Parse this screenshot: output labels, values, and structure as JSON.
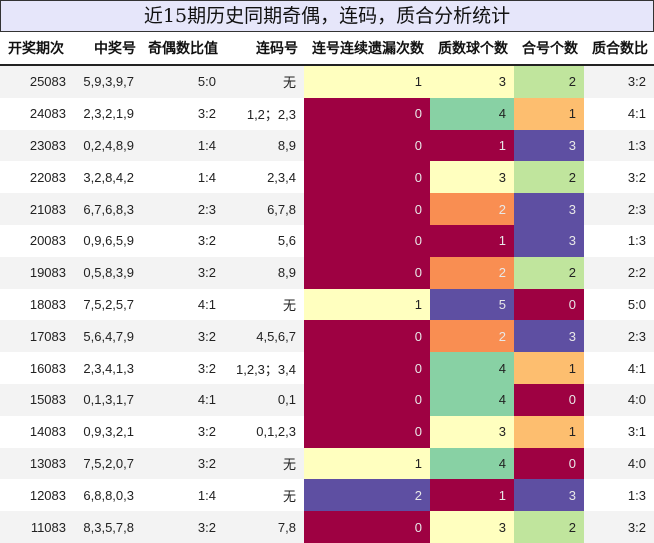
{
  "title": "近15期历史同期奇偶，连码，质合分析统计",
  "headers": [
    "开奖期次",
    "中奖号",
    "奇偶数比值",
    "连码号",
    "连号连续遗漏次数",
    "质数球个数",
    "合号个数",
    "质合数比"
  ],
  "colors": {
    "v0": "#9e0142",
    "v1_lian": "#ffffbf",
    "v2_lian": "#5e4fa2",
    "zhi1": "#9e0142",
    "zhi2": "#f98e52",
    "zhi3": "#ffffbf",
    "zhi4": "#88d1a4",
    "zhi5": "#5e4fa2",
    "he0": "#9e0142",
    "he1": "#fdbe6f",
    "he2": "#c0e59d",
    "he3": "#5e4fa2"
  },
  "rows": [
    {
      "period": "25083",
      "numbers": "5,9,3,9,7",
      "odd_even": "5:0",
      "consecutive": "无",
      "miss": "1",
      "prime": "3",
      "composite": "2",
      "ratio": "3:2"
    },
    {
      "period": "24083",
      "numbers": "2,3,2,1,9",
      "odd_even": "3:2",
      "consecutive": "1,2；2,3",
      "miss": "0",
      "prime": "4",
      "composite": "1",
      "ratio": "4:1"
    },
    {
      "period": "23083",
      "numbers": "0,2,4,8,9",
      "odd_even": "1:4",
      "consecutive": "8,9",
      "miss": "0",
      "prime": "1",
      "composite": "3",
      "ratio": "1:3"
    },
    {
      "period": "22083",
      "numbers": "3,2,8,4,2",
      "odd_even": "1:4",
      "consecutive": "2,3,4",
      "miss": "0",
      "prime": "3",
      "composite": "2",
      "ratio": "3:2"
    },
    {
      "period": "21083",
      "numbers": "6,7,6,8,3",
      "odd_even": "2:3",
      "consecutive": "6,7,8",
      "miss": "0",
      "prime": "2",
      "composite": "3",
      "ratio": "2:3"
    },
    {
      "period": "20083",
      "numbers": "0,9,6,5,9",
      "odd_even": "3:2",
      "consecutive": "5,6",
      "miss": "0",
      "prime": "1",
      "composite": "3",
      "ratio": "1:3"
    },
    {
      "period": "19083",
      "numbers": "0,5,8,3,9",
      "odd_even": "3:2",
      "consecutive": "8,9",
      "miss": "0",
      "prime": "2",
      "composite": "2",
      "ratio": "2:2"
    },
    {
      "period": "18083",
      "numbers": "7,5,2,5,7",
      "odd_even": "4:1",
      "consecutive": "无",
      "miss": "1",
      "prime": "5",
      "composite": "0",
      "ratio": "5:0"
    },
    {
      "period": "17083",
      "numbers": "5,6,4,7,9",
      "odd_even": "3:2",
      "consecutive": "4,5,6,7",
      "miss": "0",
      "prime": "2",
      "composite": "3",
      "ratio": "2:3"
    },
    {
      "period": "16083",
      "numbers": "2,3,4,1,3",
      "odd_even": "3:2",
      "consecutive": "1,2,3；3,4",
      "miss": "0",
      "prime": "4",
      "composite": "1",
      "ratio": "4:1"
    },
    {
      "period": "15083",
      "numbers": "0,1,3,1,7",
      "odd_even": "4:1",
      "consecutive": "0,1",
      "miss": "0",
      "prime": "4",
      "composite": "0",
      "ratio": "4:0"
    },
    {
      "period": "14083",
      "numbers": "0,9,3,2,1",
      "odd_even": "3:2",
      "consecutive": "0,1,2,3",
      "miss": "0",
      "prime": "3",
      "composite": "1",
      "ratio": "3:1"
    },
    {
      "period": "13083",
      "numbers": "7,5,2,0,7",
      "odd_even": "3:2",
      "consecutive": "无",
      "miss": "1",
      "prime": "4",
      "composite": "0",
      "ratio": "4:0"
    },
    {
      "period": "12083",
      "numbers": "6,8,8,0,3",
      "odd_even": "1:4",
      "consecutive": "无",
      "miss": "2",
      "prime": "1",
      "composite": "3",
      "ratio": "1:3"
    },
    {
      "period": "11083",
      "numbers": "8,3,5,7,8",
      "odd_even": "3:2",
      "consecutive": "7,8",
      "miss": "0",
      "prime": "3",
      "composite": "2",
      "ratio": "3:2"
    }
  ]
}
